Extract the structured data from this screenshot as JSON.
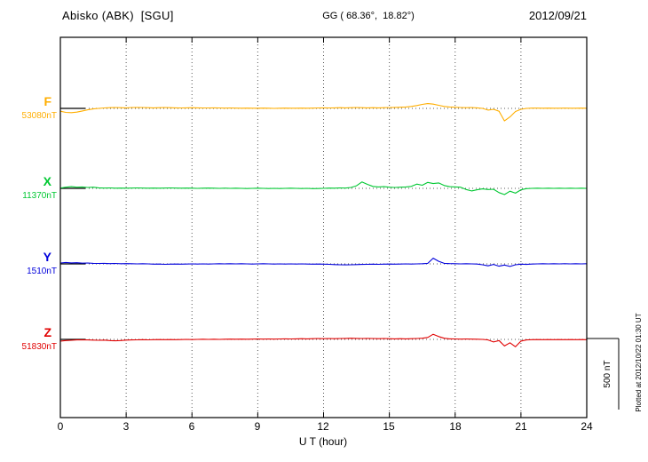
{
  "header": {
    "station": "Abisko (ABK)  [SGU]",
    "coordinates": "GG ( 68.36°,  18.82°)",
    "date": "2012/09/21"
  },
  "x_axis": {
    "label": "U T (hour)",
    "tick_labels": [
      "0",
      "3",
      "6",
      "9",
      "12",
      "15",
      "18",
      "21",
      "24"
    ]
  },
  "scale_bar": {
    "label": "500 nT"
  },
  "side_note": "Plotted at 2012/10/22 01:30 UT",
  "chart_data": {
    "type": "line",
    "title": "Abisko (ABK) [SGU] magnetogram 2012/09/21",
    "xlabel": "U T (hour)",
    "x_range": [
      0,
      24
    ],
    "x_ticks": [
      0,
      3,
      6,
      9,
      12,
      15,
      18,
      21,
      24
    ],
    "sample_interval_hours": 0.25,
    "values_unit": "nT deviation from component baseline",
    "scale_bar_nT": 500,
    "grid": "dotted vertical lines every 3 hours, dotted horizontal baseline per trace",
    "series": [
      {
        "name": "F",
        "baseline_label": "53080nT",
        "color": "#FFAE00",
        "values": [
          -20,
          -28,
          -30,
          -26,
          -18,
          -10,
          -4,
          0,
          3,
          5,
          6,
          5,
          4,
          6,
          7,
          6,
          5,
          4,
          5,
          6,
          5,
          4,
          3,
          4,
          5,
          4,
          3,
          3,
          4,
          3,
          2,
          3,
          2,
          1,
          2,
          1,
          1,
          2,
          1,
          0,
          1,
          2,
          1,
          1,
          2,
          1,
          2,
          3,
          4,
          3,
          4,
          5,
          4,
          5,
          6,
          5,
          4,
          5,
          4,
          5,
          6,
          7,
          8,
          10,
          14,
          20,
          28,
          34,
          30,
          22,
          14,
          10,
          8,
          6,
          5,
          6,
          4,
          0,
          -12,
          -6,
          -20,
          -88,
          -60,
          -22,
          -6,
          0,
          2,
          2,
          1,
          2,
          1,
          1,
          2,
          1,
          1,
          2,
          1
        ]
      },
      {
        "name": "X",
        "baseline_label": "11370nT",
        "color": "#00C832",
        "values": [
          2,
          8,
          12,
          8,
          10,
          6,
          8,
          4,
          2,
          3,
          1,
          2,
          1,
          2,
          3,
          2,
          1,
          2,
          1,
          2,
          3,
          2,
          1,
          2,
          1,
          0,
          1,
          2,
          1,
          0,
          1,
          0,
          1,
          0,
          -1,
          0,
          1,
          0,
          -1,
          0,
          -1,
          0,
          1,
          0,
          -1,
          0,
          -2,
          -1,
          0,
          2,
          1,
          3,
          2,
          6,
          18,
          45,
          28,
          14,
          10,
          12,
          8,
          6,
          8,
          10,
          14,
          30,
          22,
          42,
          34,
          38,
          20,
          12,
          10,
          8,
          -8,
          -18,
          -10,
          -4,
          -8,
          -6,
          -30,
          -44,
          -20,
          -34,
          -10,
          -2,
          0,
          1,
          0,
          1,
          0,
          1,
          0,
          1,
          0,
          1,
          0
        ]
      },
      {
        "name": "Y",
        "baseline_label": "1510nT",
        "color": "#0000DC",
        "values": [
          6,
          10,
          7,
          8,
          5,
          6,
          4,
          3,
          4,
          2,
          3,
          1,
          2,
          1,
          0,
          1,
          0,
          -2,
          -1,
          -3,
          -2,
          -1,
          -2,
          -1,
          0,
          -1,
          0,
          -1,
          0,
          1,
          0,
          1,
          0,
          1,
          0,
          -1,
          0,
          1,
          0,
          -1,
          0,
          -1,
          0,
          -1,
          0,
          -1,
          -2,
          -1,
          -2,
          -3,
          -5,
          -6,
          -7,
          -6,
          -5,
          -4,
          -3,
          -2,
          -3,
          -2,
          -1,
          -2,
          -1,
          0,
          -1,
          0,
          1,
          4,
          40,
          18,
          4,
          2,
          1,
          0,
          1,
          0,
          -1,
          -6,
          -14,
          -4,
          -16,
          -8,
          -18,
          -6,
          -2,
          -4,
          -1,
          0,
          1,
          0,
          1,
          0,
          1,
          0,
          1,
          0,
          1
        ]
      },
      {
        "name": "Z",
        "baseline_label": "51830nT",
        "color": "#E10000",
        "values": [
          -12,
          -8,
          -6,
          -4,
          -3,
          -4,
          -5,
          -6,
          -5,
          -8,
          -10,
          -8,
          -5,
          -4,
          -3,
          -2,
          -3,
          -2,
          -1,
          -2,
          -1,
          -2,
          -1,
          0,
          -1,
          0,
          1,
          0,
          1,
          0,
          1,
          2,
          1,
          2,
          1,
          2,
          3,
          2,
          3,
          2,
          3,
          4,
          3,
          4,
          5,
          4,
          5,
          6,
          5,
          6,
          5,
          6,
          7,
          8,
          7,
          6,
          7,
          6,
          5,
          6,
          5,
          4,
          5,
          4,
          5,
          6,
          8,
          14,
          36,
          20,
          8,
          4,
          3,
          2,
          3,
          2,
          1,
          0,
          -4,
          -18,
          -8,
          -46,
          -24,
          -52,
          -12,
          -4,
          -2,
          -1,
          -2,
          -1,
          -2,
          -1,
          -2,
          -1,
          -2,
          -1,
          -2
        ]
      }
    ]
  }
}
